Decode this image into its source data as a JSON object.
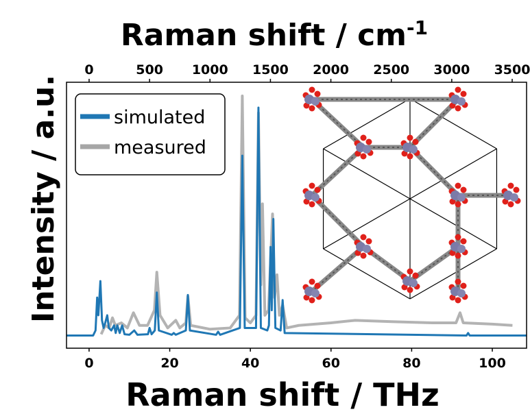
{
  "chart_data": {
    "type": "line",
    "xlabel": "Raman shift / THz",
    "x2label": "Raman shift / cm",
    "x2label_sup": "-1",
    "ylabel": "Intensity / a.u.",
    "xlim": [
      -5.6,
      108.5
    ],
    "xticks": [
      0,
      20,
      40,
      60,
      80,
      100
    ],
    "x2lim": [
      -187,
      3619
    ],
    "x2ticks": [
      0,
      500,
      1000,
      1500,
      2000,
      2500,
      3000,
      3500
    ],
    "ylim": [
      -0.05,
      1.0
    ],
    "legend": "upper left",
    "series": [
      {
        "name": "simulated",
        "color": "#1f77b4",
        "x": [
          -5.6,
          1.0,
          1.6,
          2.0,
          2.3,
          2.8,
          3.2,
          3.6,
          4.0,
          4.5,
          4.9,
          5.5,
          6.2,
          6.6,
          7.0,
          7.6,
          8.2,
          8.8,
          10.0,
          11.2,
          12.0,
          14.6,
          15.0,
          15.5,
          16.3,
          16.8,
          17.3,
          20.5,
          21.0,
          21.5,
          24.0,
          24.5,
          25.0,
          31.5,
          32.0,
          32.5,
          37.4,
          38.0,
          38.6,
          41.4,
          42.0,
          42.6,
          44.2,
          44.6,
          45.0,
          45.3,
          45.7,
          46.2,
          47.5,
          48.0,
          48.5,
          93.6,
          94.0,
          94.4,
          108.5
        ],
        "values": [
          0,
          0,
          0.02,
          0.15,
          0.08,
          0.215,
          0.06,
          0.03,
          0.05,
          0.08,
          0.03,
          0.02,
          0.04,
          0.01,
          0.04,
          0.01,
          0.04,
          0.005,
          0.003,
          0.02,
          0.003,
          0.005,
          0.03,
          0.005,
          0.02,
          0.17,
          0.02,
          0.003,
          0.01,
          0.003,
          0.02,
          0.16,
          0.02,
          0.003,
          0.015,
          0.003,
          0.03,
          0.71,
          0.03,
          0.03,
          0.9,
          0.03,
          0.02,
          0.04,
          0.35,
          0.1,
          0.46,
          0.03,
          0.02,
          0.14,
          0.01,
          0,
          0.01,
          0,
          0
        ]
      },
      {
        "name": "measured",
        "color": "#a6a6a6",
        "x": [
          3.0,
          4.0,
          5.0,
          5.8,
          6.5,
          8.0,
          9.5,
          11.0,
          12.5,
          14.5,
          16.2,
          16.8,
          17.6,
          19.5,
          21.5,
          22.5,
          24.0,
          24.5,
          25.2,
          30.0,
          35.0,
          37.3,
          38.0,
          38.7,
          40.0,
          41.4,
          42.0,
          42.6,
          43.0,
          43.6,
          44.5,
          45.5,
          46.0,
          46.6,
          47.2,
          48.0,
          49.0,
          52.0,
          60.0,
          66.0,
          75.0,
          85.0,
          91.0,
          92.0,
          92.8,
          100.0,
          105.0
        ],
        "values": [
          0.005,
          0.04,
          0.03,
          0.07,
          0.04,
          0.05,
          0.03,
          0.09,
          0.04,
          0.04,
          0.1,
          0.25,
          0.08,
          0.03,
          0.06,
          0.03,
          0.05,
          0.155,
          0.04,
          0.025,
          0.03,
          0.08,
          0.946,
          0.07,
          0.05,
          0.08,
          0.88,
          0.2,
          0.52,
          0.08,
          0.1,
          0.48,
          0.15,
          0.24,
          0.08,
          0.12,
          0.03,
          0.04,
          0.05,
          0.06,
          0.055,
          0.05,
          0.05,
          0.09,
          0.05,
          0.045,
          0.04
        ]
      }
    ]
  }
}
